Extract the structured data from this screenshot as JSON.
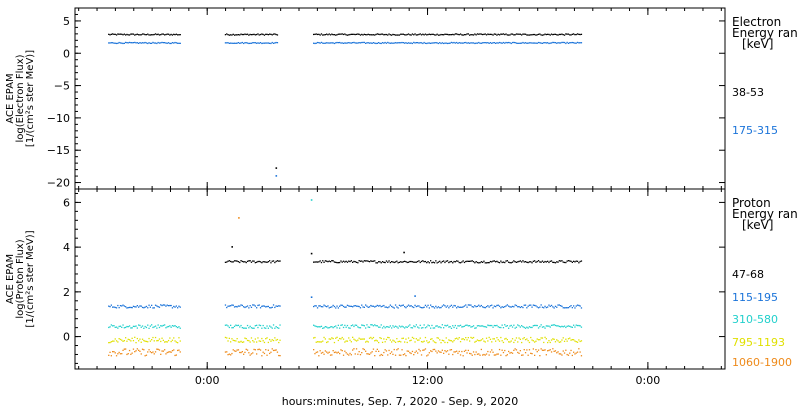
{
  "chart_data": [
    {
      "type": "scatter",
      "panel": "electron",
      "ylabel_lines": [
        "ACE EPAM",
        "log(Electron Flux)",
        "[1/(cm²s ster MeV)]"
      ],
      "ylim": [
        -21,
        7
      ],
      "yticks": [
        5,
        0,
        -5,
        -10,
        -15,
        -20
      ],
      "legend_title": [
        "Electron",
        "Energy ran",
        "[keV]"
      ],
      "series": [
        {
          "name": "38-53",
          "color": "#000000",
          "level": 2.9,
          "jitter": 0.1,
          "segments": [
            [
              -0.45,
              -0.12
            ],
            [
              0.08,
              0.32
            ],
            [
              0.48,
              1.7
            ]
          ],
          "outliers": [
            [
              0.31,
              -17.8
            ]
          ]
        },
        {
          "name": "175-315",
          "color": "#1a73d9",
          "level": 1.6,
          "jitter": 0.08,
          "segments": [
            [
              -0.45,
              -0.12
            ],
            [
              0.08,
              0.32
            ],
            [
              0.48,
              1.7
            ]
          ],
          "outliers": [
            [
              0.31,
              -19.0
            ]
          ]
        }
      ]
    },
    {
      "type": "scatter",
      "panel": "proton",
      "ylabel_lines": [
        "ACE EPAM",
        "log(Proton Flux)",
        "[1/(cm²s ster MeV)]"
      ],
      "ylim": [
        -1.45,
        6.6
      ],
      "yticks": [
        6,
        4,
        2,
        0
      ],
      "legend_title": [
        "Proton",
        "Energy ran",
        "[keV]"
      ],
      "series": [
        {
          "name": "47-68",
          "color": "#000000",
          "level": 3.35,
          "jitter": 0.05,
          "segments": [
            [
              0.08,
              0.33
            ],
            [
              0.48,
              1.7
            ]
          ],
          "outliers": [
            [
              0.11,
              4.0
            ],
            [
              0.47,
              3.7
            ],
            [
              0.89,
              3.75
            ]
          ]
        },
        {
          "name": "115-195",
          "color": "#1a73d9",
          "level": 1.35,
          "jitter": 0.07,
          "segments": [
            [
              -0.45,
              -0.12
            ],
            [
              0.08,
              0.33
            ],
            [
              0.48,
              1.7
            ]
          ],
          "outliers": [
            [
              0.47,
              1.75
            ],
            [
              0.94,
              1.8
            ]
          ]
        },
        {
          "name": "310-580",
          "color": "#22d0cc",
          "level": 0.45,
          "jitter": 0.08,
          "segments": [
            [
              -0.45,
              -0.12
            ],
            [
              0.08,
              0.33
            ],
            [
              0.48,
              1.7
            ]
          ],
          "outliers": [
            [
              0.47,
              6.1
            ]
          ]
        },
        {
          "name": "795-1193",
          "color": "#e0e000",
          "level": -0.15,
          "jitter": 0.12,
          "segments": [
            [
              -0.45,
              -0.12
            ],
            [
              0.08,
              0.33
            ],
            [
              0.48,
              1.7
            ]
          ],
          "outliers": []
        },
        {
          "name": "1060-1900",
          "color": "#ee8a1a",
          "level": -0.7,
          "jitter": 0.16,
          "segments": [
            [
              -0.45,
              -0.12
            ],
            [
              0.08,
              0.33
            ],
            [
              0.48,
              1.7
            ]
          ],
          "outliers": [
            [
              0.14,
              5.3
            ]
          ]
        }
      ]
    }
  ],
  "x_axis": {
    "xlim": [
      -0.6,
      2.35
    ],
    "ticks": [
      {
        "value": 0,
        "label": "0:00"
      },
      {
        "value": 1,
        "label": "12:00"
      },
      {
        "value": 2,
        "label": "0:00"
      }
    ],
    "xlabel": "hours:minutes, Sep.  7, 2020 - Sep.  9, 2020"
  }
}
